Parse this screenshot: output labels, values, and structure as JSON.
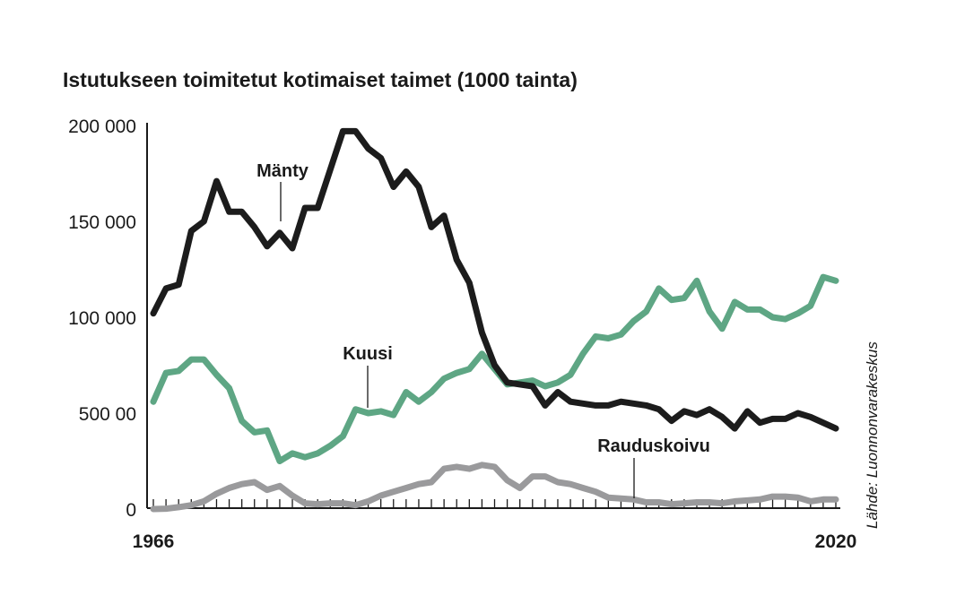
{
  "chart_data": {
    "type": "line",
    "title": "Istutukseen toimitetut kotimaiset taimet (1000 tainta)",
    "xlabel": "",
    "ylabel": "",
    "xlim": [
      1966,
      2020
    ],
    "ylim": [
      0,
      200000
    ],
    "y_tick_labels": [
      {
        "value": 0,
        "label": "0"
      },
      {
        "value": 50000,
        "label": "500 00"
      },
      {
        "value": 100000,
        "label": "100 000"
      },
      {
        "value": 150000,
        "label": "150 000"
      },
      {
        "value": 200000,
        "label": "200 000"
      }
    ],
    "x_tick_labels": [
      {
        "value": 1966,
        "label": "1966"
      },
      {
        "value": 2020,
        "label": "2020"
      }
    ],
    "grid": false,
    "source": "Lähde: Luonnonvarakeskus",
    "x": [
      1966,
      1967,
      1968,
      1969,
      1970,
      1971,
      1972,
      1973,
      1974,
      1975,
      1976,
      1977,
      1978,
      1979,
      1980,
      1981,
      1982,
      1983,
      1984,
      1985,
      1986,
      1987,
      1988,
      1989,
      1990,
      1991,
      1992,
      1993,
      1994,
      1995,
      1996,
      1997,
      1998,
      1999,
      2000,
      2001,
      2002,
      2003,
      2004,
      2005,
      2006,
      2007,
      2008,
      2009,
      2010,
      2011,
      2012,
      2013,
      2014,
      2015,
      2016,
      2017,
      2018,
      2019,
      2020
    ],
    "series": [
      {
        "name": "Mänty",
        "color": "#1c1c1c",
        "values": [
          102000,
          115000,
          117000,
          145000,
          150000,
          171000,
          155000,
          155000,
          147000,
          137000,
          144000,
          136000,
          157000,
          157000,
          177000,
          197000,
          197000,
          188000,
          183000,
          168000,
          176000,
          168000,
          147000,
          153000,
          130000,
          118000,
          92000,
          75000,
          66000,
          65000,
          64000,
          54000,
          61000,
          56000,
          55000,
          54000,
          54000,
          56000,
          55000,
          54000,
          52000,
          46000,
          51000,
          49000,
          52000,
          48000,
          42000,
          51000,
          45000,
          47000,
          47000,
          50000,
          48000,
          45000,
          42000
        ]
      },
      {
        "name": "Kuusi",
        "color": "#5ea684",
        "values": [
          56000,
          71000,
          72000,
          78000,
          78000,
          70000,
          63000,
          46000,
          40000,
          41000,
          25000,
          29000,
          27000,
          29000,
          33000,
          38000,
          52000,
          50000,
          51000,
          49000,
          61000,
          56000,
          61000,
          68000,
          71000,
          73000,
          81000,
          73000,
          65000,
          66000,
          67000,
          64000,
          66000,
          70000,
          81000,
          90000,
          89000,
          91000,
          98000,
          103000,
          115000,
          109000,
          110000,
          119000,
          103000,
          94000,
          108000,
          104000,
          104000,
          100000,
          99000,
          102000,
          106000,
          121000,
          119000
        ]
      },
      {
        "name": "Rauduskoivu",
        "color": "#9a9a9c",
        "values": [
          0,
          200,
          1000,
          2000,
          4000,
          8000,
          11000,
          13000,
          14000,
          10000,
          12000,
          7000,
          3000,
          2500,
          3000,
          3000,
          2000,
          4000,
          7000,
          9000,
          11000,
          13000,
          14000,
          21000,
          22000,
          21000,
          23000,
          22000,
          15000,
          11000,
          17000,
          17000,
          14000,
          13000,
          11000,
          9000,
          6000,
          5500,
          5000,
          3500,
          3500,
          2500,
          3000,
          3500,
          3500,
          3000,
          4000,
          4500,
          5000,
          6500,
          6500,
          6000,
          4000,
          5000,
          5000
        ]
      }
    ],
    "annotations": [
      {
        "series": "Mänty",
        "text": "Mänty"
      },
      {
        "series": "Kuusi",
        "text": "Kuusi"
      },
      {
        "series": "Rauduskoivu",
        "text": "Rauduskoivu"
      }
    ]
  }
}
